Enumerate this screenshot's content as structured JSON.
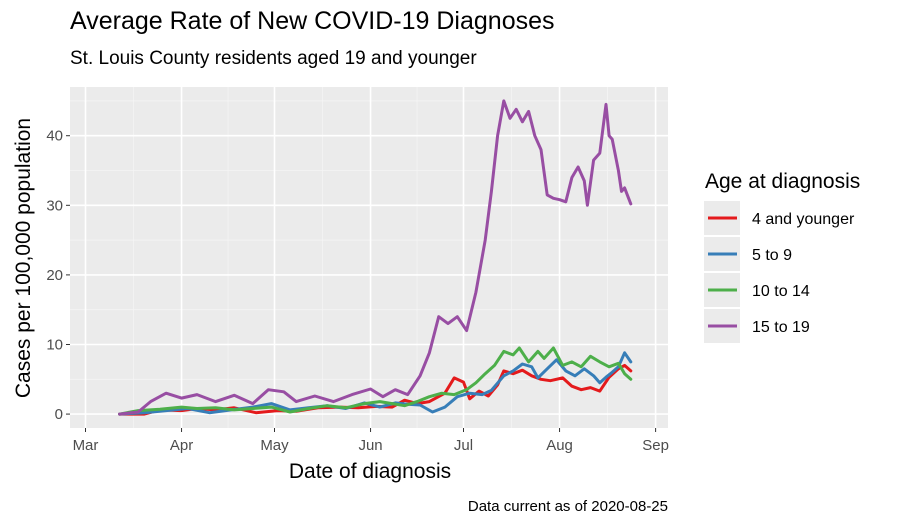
{
  "chart_data": {
    "type": "line",
    "title": "Average Rate of New COVID-19 Diagnoses",
    "subtitle": "St. Louis County residents aged 19 and younger",
    "xlabel": "Date of diagnosis",
    "ylabel": "Cases per 100,000 population",
    "caption": "Data current as of 2020-08-25",
    "legend_title": "Age at diagnosis",
    "legend_position": "right",
    "grid": true,
    "xlim": [
      "2020-02-25",
      "2020-09-05"
    ],
    "ylim": [
      -2,
      47
    ],
    "x_ticks": [
      {
        "date": "2020-03-01",
        "label": "Mar"
      },
      {
        "date": "2020-04-01",
        "label": "Apr"
      },
      {
        "date": "2020-05-01",
        "label": "May"
      },
      {
        "date": "2020-06-01",
        "label": "Jun"
      },
      {
        "date": "2020-07-01",
        "label": "Jul"
      },
      {
        "date": "2020-08-01",
        "label": "Aug"
      },
      {
        "date": "2020-09-01",
        "label": "Sep"
      }
    ],
    "y_ticks": [
      0,
      10,
      20,
      30,
      40
    ],
    "series": [
      {
        "name": "4 and younger",
        "color": "#e41a1c",
        "points": [
          [
            "2020-03-12",
            0
          ],
          [
            "2020-03-20",
            0
          ],
          [
            "2020-03-25",
            0.6
          ],
          [
            "2020-04-01",
            0.5
          ],
          [
            "2020-04-06",
            0.8
          ],
          [
            "2020-04-12",
            0.6
          ],
          [
            "2020-04-18",
            0.9
          ],
          [
            "2020-04-25",
            0.2
          ],
          [
            "2020-05-02",
            0.5
          ],
          [
            "2020-05-08",
            0.4
          ],
          [
            "2020-05-15",
            0.9
          ],
          [
            "2020-05-22",
            1.0
          ],
          [
            "2020-05-28",
            0.9
          ],
          [
            "2020-06-03",
            1.1
          ],
          [
            "2020-06-08",
            1.0
          ],
          [
            "2020-06-12",
            2.0
          ],
          [
            "2020-06-16",
            1.5
          ],
          [
            "2020-06-20",
            1.8
          ],
          [
            "2020-06-25",
            3.0
          ],
          [
            "2020-06-28",
            5.2
          ],
          [
            "2020-07-01",
            4.6
          ],
          [
            "2020-07-03",
            2.2
          ],
          [
            "2020-07-06",
            3.3
          ],
          [
            "2020-07-09",
            2.6
          ],
          [
            "2020-07-12",
            4.2
          ],
          [
            "2020-07-14",
            6.2
          ],
          [
            "2020-07-17",
            5.8
          ],
          [
            "2020-07-20",
            6.3
          ],
          [
            "2020-07-23",
            5.5
          ],
          [
            "2020-07-26",
            5.0
          ],
          [
            "2020-07-29",
            4.8
          ],
          [
            "2020-08-02",
            5.2
          ],
          [
            "2020-08-05",
            4.0
          ],
          [
            "2020-08-08",
            3.5
          ],
          [
            "2020-08-11",
            3.8
          ],
          [
            "2020-08-14",
            3.3
          ],
          [
            "2020-08-17",
            5.3
          ],
          [
            "2020-08-20",
            6.5
          ],
          [
            "2020-08-22",
            7.0
          ],
          [
            "2020-08-24",
            6.2
          ]
        ]
      },
      {
        "name": "5 to 9",
        "color": "#377eb8",
        "points": [
          [
            "2020-03-12",
            0
          ],
          [
            "2020-03-20",
            0.2
          ],
          [
            "2020-03-27",
            0.5
          ],
          [
            "2020-04-03",
            0.8
          ],
          [
            "2020-04-10",
            0.2
          ],
          [
            "2020-04-17",
            0.6
          ],
          [
            "2020-04-24",
            1.0
          ],
          [
            "2020-04-30",
            1.5
          ],
          [
            "2020-05-06",
            0.6
          ],
          [
            "2020-05-12",
            0.9
          ],
          [
            "2020-05-18",
            1.2
          ],
          [
            "2020-05-24",
            0.8
          ],
          [
            "2020-05-30",
            1.6
          ],
          [
            "2020-06-04",
            1.0
          ],
          [
            "2020-06-09",
            1.6
          ],
          [
            "2020-06-13",
            1.4
          ],
          [
            "2020-06-17",
            1.3
          ],
          [
            "2020-06-21",
            0.3
          ],
          [
            "2020-06-25",
            1.0
          ],
          [
            "2020-06-29",
            2.5
          ],
          [
            "2020-07-03",
            3.0
          ],
          [
            "2020-07-07",
            2.8
          ],
          [
            "2020-07-10",
            3.4
          ],
          [
            "2020-07-14",
            5.5
          ],
          [
            "2020-07-17",
            6.2
          ],
          [
            "2020-07-20",
            7.2
          ],
          [
            "2020-07-23",
            6.8
          ],
          [
            "2020-07-25",
            5.2
          ],
          [
            "2020-07-28",
            6.5
          ],
          [
            "2020-07-31",
            7.8
          ],
          [
            "2020-08-03",
            6.2
          ],
          [
            "2020-08-06",
            5.5
          ],
          [
            "2020-08-09",
            6.5
          ],
          [
            "2020-08-12",
            5.5
          ],
          [
            "2020-08-14",
            4.5
          ],
          [
            "2020-08-16",
            5.3
          ],
          [
            "2020-08-18",
            6.0
          ],
          [
            "2020-08-20",
            6.8
          ],
          [
            "2020-08-22",
            8.8
          ],
          [
            "2020-08-24",
            7.5
          ]
        ]
      },
      {
        "name": "10 to 14",
        "color": "#4daf4a",
        "points": [
          [
            "2020-03-12",
            0
          ],
          [
            "2020-03-18",
            0.5
          ],
          [
            "2020-03-25",
            0.7
          ],
          [
            "2020-04-01",
            1.0
          ],
          [
            "2020-04-06",
            0.8
          ],
          [
            "2020-04-12",
            0.9
          ],
          [
            "2020-04-18",
            0.6
          ],
          [
            "2020-04-24",
            0.8
          ],
          [
            "2020-04-30",
            1.0
          ],
          [
            "2020-05-06",
            0.3
          ],
          [
            "2020-05-12",
            0.8
          ],
          [
            "2020-05-18",
            1.2
          ],
          [
            "2020-05-24",
            0.9
          ],
          [
            "2020-05-30",
            1.5
          ],
          [
            "2020-06-04",
            1.8
          ],
          [
            "2020-06-08",
            1.5
          ],
          [
            "2020-06-12",
            1.2
          ],
          [
            "2020-06-16",
            1.8
          ],
          [
            "2020-06-20",
            2.5
          ],
          [
            "2020-06-24",
            3.0
          ],
          [
            "2020-06-28",
            2.8
          ],
          [
            "2020-07-02",
            3.5
          ],
          [
            "2020-07-05",
            4.5
          ],
          [
            "2020-07-08",
            5.8
          ],
          [
            "2020-07-11",
            7.0
          ],
          [
            "2020-07-14",
            9.0
          ],
          [
            "2020-07-17",
            8.5
          ],
          [
            "2020-07-19",
            9.5
          ],
          [
            "2020-07-22",
            7.5
          ],
          [
            "2020-07-25",
            9.0
          ],
          [
            "2020-07-27",
            8.0
          ],
          [
            "2020-07-30",
            9.5
          ],
          [
            "2020-08-02",
            7.0
          ],
          [
            "2020-08-05",
            7.5
          ],
          [
            "2020-08-08",
            6.8
          ],
          [
            "2020-08-11",
            8.3
          ],
          [
            "2020-08-14",
            7.5
          ],
          [
            "2020-08-17",
            6.8
          ],
          [
            "2020-08-20",
            7.3
          ],
          [
            "2020-08-22",
            5.8
          ],
          [
            "2020-08-24",
            5.0
          ]
        ]
      },
      {
        "name": "15 to 19",
        "color": "#984ea3",
        "points": [
          [
            "2020-03-12",
            0
          ],
          [
            "2020-03-18",
            0.3
          ],
          [
            "2020-03-22",
            1.8
          ],
          [
            "2020-03-27",
            3.0
          ],
          [
            "2020-04-01",
            2.3
          ],
          [
            "2020-04-06",
            2.8
          ],
          [
            "2020-04-12",
            1.8
          ],
          [
            "2020-04-18",
            2.7
          ],
          [
            "2020-04-24",
            1.5
          ],
          [
            "2020-04-29",
            3.5
          ],
          [
            "2020-05-04",
            3.2
          ],
          [
            "2020-05-08",
            1.8
          ],
          [
            "2020-05-14",
            2.6
          ],
          [
            "2020-05-20",
            1.8
          ],
          [
            "2020-05-26",
            2.8
          ],
          [
            "2020-06-01",
            3.6
          ],
          [
            "2020-06-05",
            2.5
          ],
          [
            "2020-06-09",
            3.5
          ],
          [
            "2020-06-13",
            2.8
          ],
          [
            "2020-06-17",
            5.5
          ],
          [
            "2020-06-20",
            8.8
          ],
          [
            "2020-06-23",
            14.0
          ],
          [
            "2020-06-26",
            13.0
          ],
          [
            "2020-06-29",
            14.0
          ],
          [
            "2020-07-02",
            12.0
          ],
          [
            "2020-07-05",
            17.5
          ],
          [
            "2020-07-08",
            25.0
          ],
          [
            "2020-07-10",
            32.0
          ],
          [
            "2020-07-12",
            40.0
          ],
          [
            "2020-07-14",
            45.0
          ],
          [
            "2020-07-16",
            42.5
          ],
          [
            "2020-07-18",
            43.8
          ],
          [
            "2020-07-20",
            42.0
          ],
          [
            "2020-07-22",
            43.5
          ],
          [
            "2020-07-24",
            40.0
          ],
          [
            "2020-07-26",
            38.0
          ],
          [
            "2020-07-28",
            31.5
          ],
          [
            "2020-07-30",
            31.0
          ],
          [
            "2020-08-01",
            30.8
          ],
          [
            "2020-08-03",
            30.5
          ],
          [
            "2020-08-05",
            34.0
          ],
          [
            "2020-08-07",
            35.5
          ],
          [
            "2020-08-09",
            33.5
          ],
          [
            "2020-08-10",
            30.0
          ],
          [
            "2020-08-12",
            36.5
          ],
          [
            "2020-08-14",
            37.5
          ],
          [
            "2020-08-16",
            44.5
          ],
          [
            "2020-08-17",
            40.0
          ],
          [
            "2020-08-18",
            39.5
          ],
          [
            "2020-08-20",
            35.0
          ],
          [
            "2020-08-21",
            32.0
          ],
          [
            "2020-08-22",
            32.5
          ],
          [
            "2020-08-24",
            30.2
          ]
        ]
      }
    ]
  }
}
